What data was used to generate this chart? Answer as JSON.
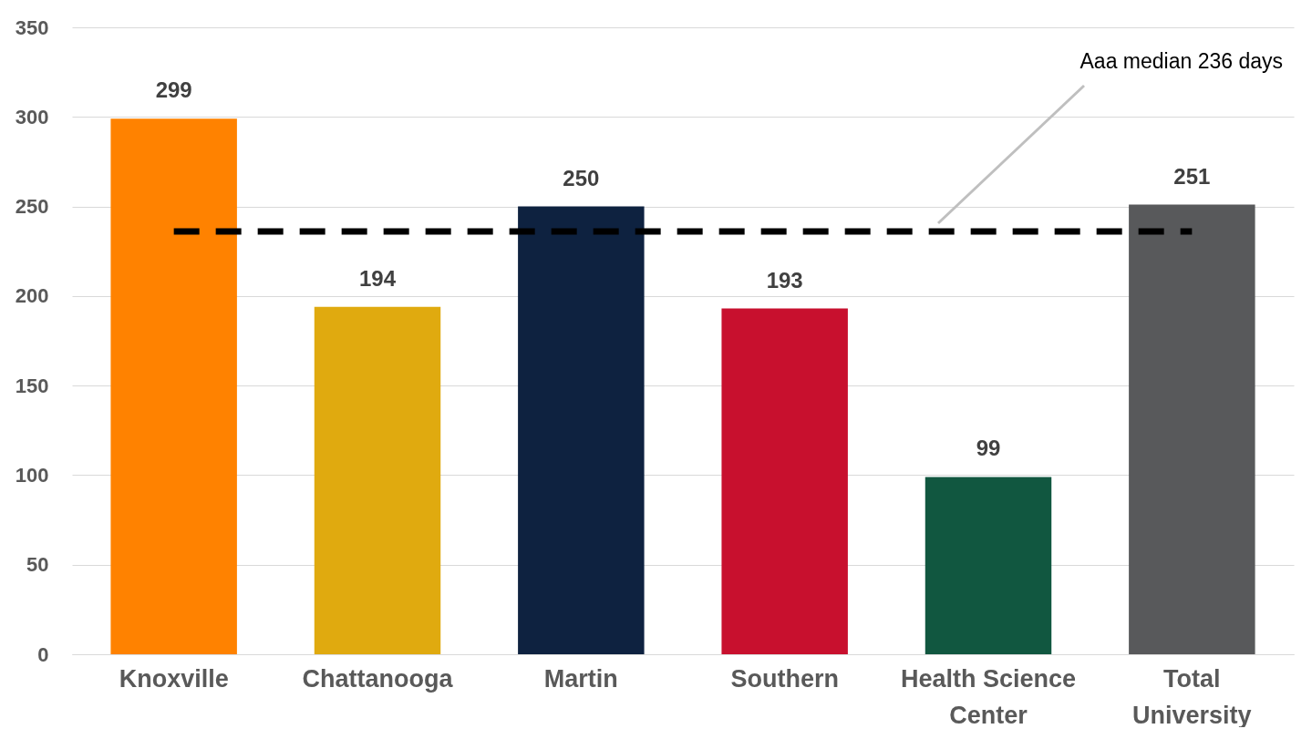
{
  "chart_data": {
    "type": "bar",
    "categories": [
      "Knoxville",
      "Chattanooga",
      "Martin",
      "Southern",
      "Health Science Center",
      "Total University"
    ],
    "values": [
      299,
      194,
      250,
      193,
      99,
      251
    ],
    "colors": [
      "#ff8200",
      "#e0aa0f",
      "#0e2240",
      "#c8102e",
      "#115740",
      "#58595b"
    ],
    "ylim": [
      0,
      350
    ],
    "yticks": [
      0,
      50,
      100,
      150,
      200,
      250,
      300,
      350
    ],
    "grid": "y",
    "data_labels": true,
    "ref_lines": [
      {
        "axis": "y",
        "value": 236,
        "label": "Aaa median 236 days",
        "color": "#000000",
        "line_style": "dashed"
      }
    ]
  }
}
